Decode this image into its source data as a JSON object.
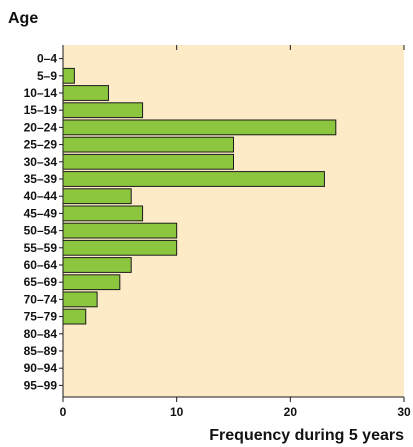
{
  "chart_data": {
    "type": "bar",
    "orientation": "horizontal",
    "title": "",
    "ylabel": "Age",
    "xlabel": "Frequency during 5 years",
    "categories": [
      "0–4",
      "5–9",
      "10–14",
      "15–19",
      "20–24",
      "25–29",
      "30–34",
      "35–39",
      "40–44",
      "45–49",
      "50–54",
      "55–59",
      "60–64",
      "65–69",
      "70–74",
      "75–79",
      "80–84",
      "85–89",
      "90–94",
      "95–99"
    ],
    "values": [
      0,
      1,
      4,
      7,
      24,
      15,
      15,
      23,
      6,
      7,
      10,
      10,
      6,
      5,
      3,
      2,
      0,
      0,
      0,
      0
    ],
    "xlim": [
      0,
      30
    ],
    "xticks": [
      0,
      10,
      20,
      30
    ],
    "grid": false,
    "colors": {
      "bar": "#8cc63f",
      "bar_edge": "#1a1a1a",
      "plot_background": "#fdebc8",
      "axis": "#1a1a1a"
    }
  }
}
